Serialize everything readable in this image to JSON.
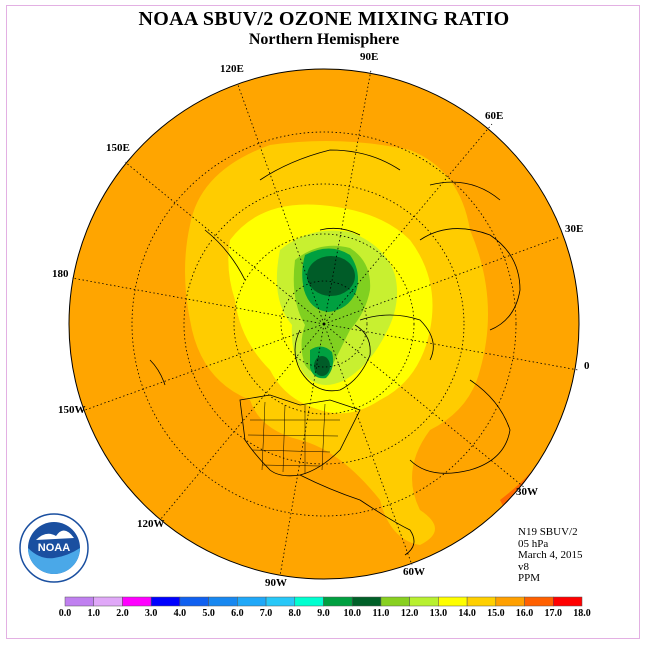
{
  "title": "NOAA SBUV/2 OZONE MIXING RATIO",
  "subtitle": "Northern Hemisphere",
  "logo_text": "NOAA",
  "longitude_labels": {
    "lon_90e": "90E",
    "lon_60e": "60E",
    "lon_30e": "30E",
    "lon_0": "0",
    "lon_30w": "30W",
    "lon_60w": "60W",
    "lon_90w": "90W",
    "lon_120w": "120W",
    "lon_150w": "150W",
    "lon_180": "180",
    "lon_150e": "150E",
    "lon_120e": "120E"
  },
  "info": {
    "instrument": "N19 SBUV/2",
    "pressure": "05 hPa",
    "date": "March 4, 2015",
    "version": "v8",
    "units": "PPM"
  },
  "colorbar": {
    "tick_labels": [
      "0.0",
      "1.0",
      "2.0",
      "3.0",
      "4.0",
      "5.0",
      "6.0",
      "7.0",
      "8.0",
      "9.0",
      "10.0",
      "11.0",
      "12.0",
      "13.0",
      "14.0",
      "15.0",
      "16.0",
      "17.0",
      "18.0"
    ],
    "colors": [
      "#c080f0",
      "#e0a8f8",
      "#ff00ff",
      "#0000ff",
      "#1060f0",
      "#1888f0",
      "#20a8f8",
      "#28c8f8",
      "#00ffd0",
      "#00a040",
      "#006028",
      "#88d020",
      "#b8f030",
      "#ffff00",
      "#ffd000",
      "#ffa000",
      "#ff6000",
      "#ff0000",
      "#8b4513"
    ]
  },
  "map_colors": {
    "ocean_band_13_14": "#ffcc00",
    "band_14_15": "#ffa500",
    "band_15_16": "#ff6a00",
    "band_12_13": "#ffff00",
    "band_11_12": "#c8f030",
    "band_10_11": "#80d020",
    "band_9_10": "#00a040",
    "band_8_9": "#005c28"
  }
}
